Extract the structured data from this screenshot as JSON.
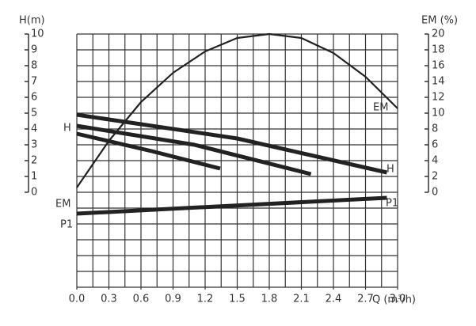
{
  "chart_data": {
    "type": "line",
    "x_label": "Q (m³/h)",
    "y_label": "H(m)",
    "y2_label": "EM (%)",
    "xlim": [
      0,
      3.0
    ],
    "xticks": [
      {
        "value": 0,
        "label": "0.0"
      },
      0.3,
      0.6,
      0.9,
      1.2,
      1.5,
      1.8,
      2.1,
      2.4,
      2.7,
      {
        "value": 3,
        "label": "3.0"
      }
    ],
    "ylim": [
      -6,
      10
    ],
    "yticks": [
      0,
      1,
      2,
      3,
      4,
      5,
      6,
      7,
      8,
      9,
      10
    ],
    "y2lim": [
      -12,
      20
    ],
    "y2ticks": [
      0,
      2,
      4,
      6,
      8,
      10,
      12,
      14,
      16,
      18,
      20
    ],
    "grid": true,
    "series": [
      {
        "name": "EM",
        "color": "#222222",
        "axis": "y2",
        "x": [
          0,
          0.3,
          0.6,
          0.9,
          1.2,
          1.5,
          1.8,
          2.1,
          2.4,
          2.7,
          3.0
        ],
        "values": [
          0.6,
          6.5,
          11.4,
          15.1,
          17.8,
          19.5,
          20,
          19.5,
          17.6,
          14.6,
          10.6
        ]
      },
      {
        "name": "H",
        "color": "#222222",
        "x": [
          0,
          1.5,
          2.9
        ],
        "values": [
          4.9,
          3.4,
          1.25
        ]
      },
      {
        "name": "H",
        "color": "#222222",
        "x": [
          0,
          1.1,
          2.19
        ],
        "values": [
          4.2,
          3.0,
          1.15
        ]
      },
      {
        "name": "H",
        "color": "#222222",
        "x": [
          0,
          0.7,
          1.34
        ],
        "values": [
          3.7,
          2.6,
          1.5
        ]
      },
      {
        "name": "P1",
        "color": "#222222",
        "x": [
          0,
          2.9
        ],
        "values": [
          -1.35,
          -0.35
        ]
      }
    ],
    "annotations": [
      "EM",
      "H",
      "H",
      "EM",
      "P1",
      "P1"
    ]
  }
}
